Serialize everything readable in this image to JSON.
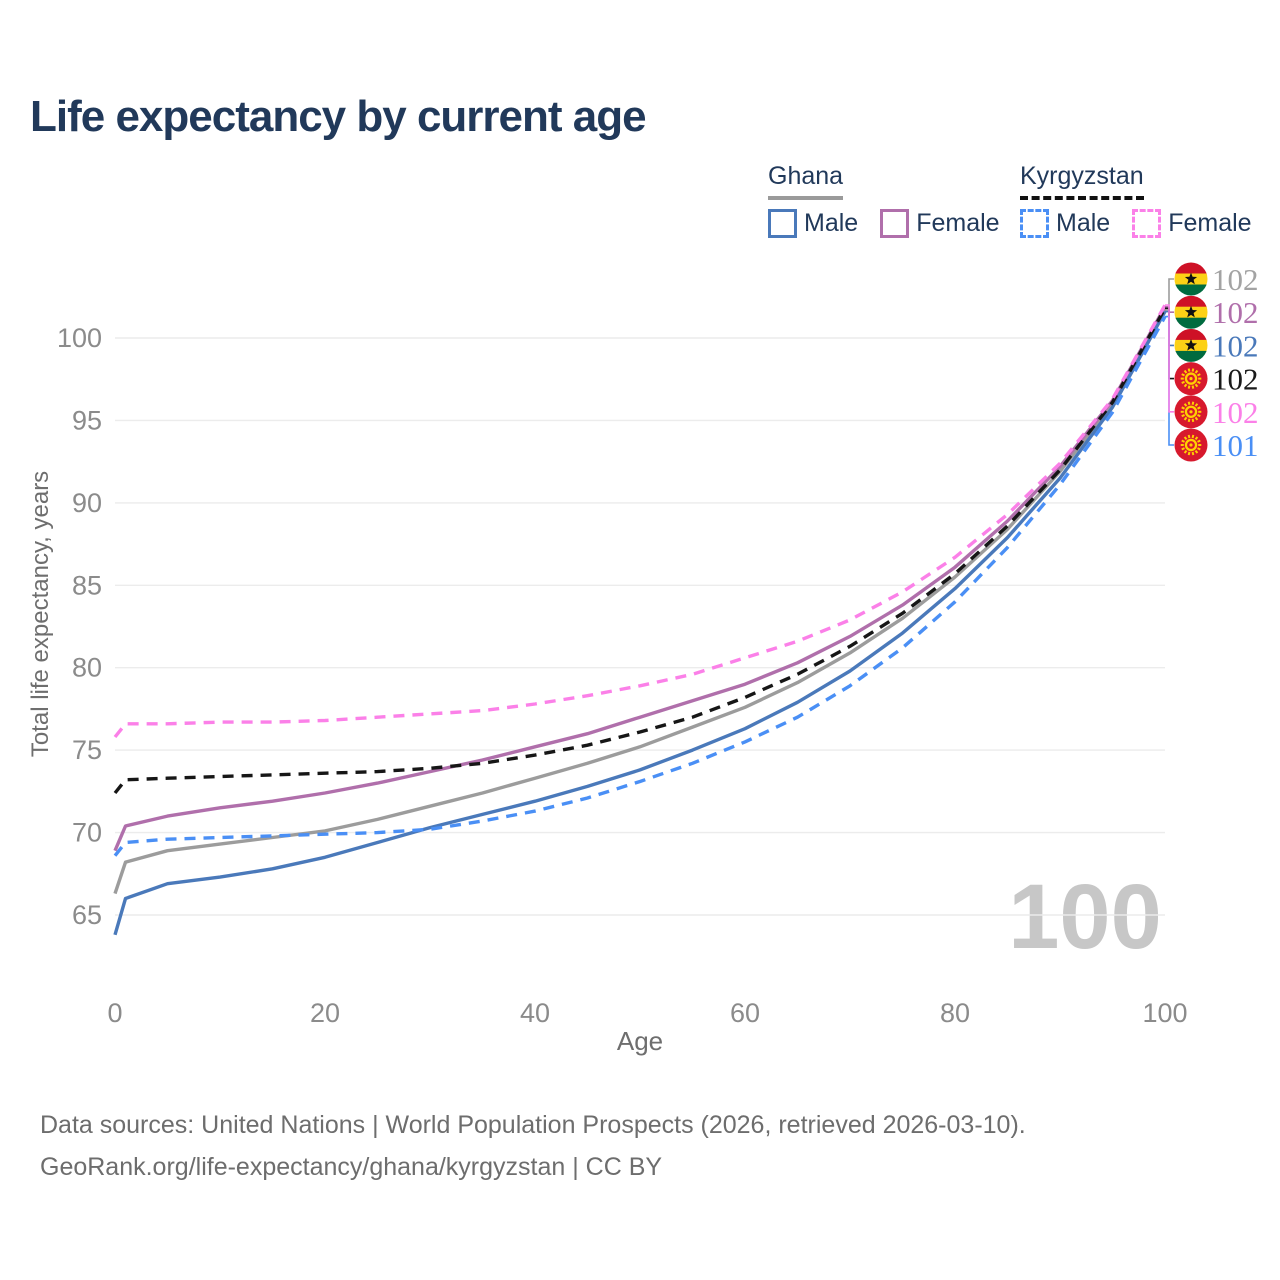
{
  "page": {
    "title": "Life expectancy by current age",
    "watermark": "100"
  },
  "legend": {
    "groups": [
      {
        "label": "Ghana",
        "underline_style": "solid",
        "underline_color": "#9a9a9a",
        "items": [
          {
            "label": "Male",
            "color": "#4a79ba",
            "dash": false
          },
          {
            "label": "Female",
            "color": "#b06fab",
            "dash": false
          }
        ]
      },
      {
        "label": "Kyrgyzstan",
        "underline_style": "dashed",
        "underline_color": "#111111",
        "items": [
          {
            "label": "Male",
            "color": "#4a8ff5",
            "dash": true
          },
          {
            "label": "Female",
            "color": "#fb80e8",
            "dash": true
          }
        ]
      }
    ]
  },
  "right_labels": [
    {
      "flag": "ghana",
      "value": "102",
      "color": "#a3a3a3"
    },
    {
      "flag": "ghana",
      "value": "102",
      "color": "#b06fab"
    },
    {
      "flag": "ghana",
      "value": "102",
      "color": "#4a79ba"
    },
    {
      "flag": "kyrgyzstan",
      "value": "102",
      "color": "#1a1a1a"
    },
    {
      "flag": "kyrgyzstan",
      "value": "102",
      "color": "#fb80e8"
    },
    {
      "flag": "kyrgyzstan",
      "value": "101",
      "color": "#4a8ff5"
    }
  ],
  "footer": {
    "line1": "Data sources: United Nations | World Population Prospects (2026, retrieved 2026-03-10).",
    "line2": "GeoRank.org/life-expectancy/ghana/kyrgyzstan | CC BY"
  },
  "chart_data": {
    "type": "line",
    "title": "Life expectancy by current age",
    "xlabel": "Age",
    "ylabel": "Total life expectancy, years",
    "xlim": [
      0,
      100
    ],
    "ylim": [
      63,
      103
    ],
    "xticks": [
      0,
      20,
      40,
      60,
      80,
      100
    ],
    "yticks": [
      65,
      70,
      75,
      80,
      85,
      90,
      95,
      100
    ],
    "grid": "horizontal",
    "legend_position": "top-right",
    "x": [
      0,
      1,
      5,
      10,
      15,
      20,
      25,
      30,
      35,
      40,
      45,
      50,
      55,
      60,
      65,
      70,
      75,
      80,
      85,
      90,
      95,
      100
    ],
    "series": [
      {
        "name": "Ghana Total",
        "country": "Ghana",
        "sex": "all",
        "color": "#9c9c9c",
        "style": "solid",
        "label_row": 0,
        "end_label": "102",
        "values": [
          66.3,
          68.2,
          68.9,
          69.3,
          69.7,
          70.1,
          70.8,
          71.6,
          72.4,
          73.3,
          74.2,
          75.2,
          76.4,
          77.6,
          79.1,
          80.9,
          83.0,
          85.5,
          88.4,
          91.9,
          96.0,
          101.7
        ]
      },
      {
        "name": "Ghana Female",
        "country": "Ghana",
        "sex": "female",
        "color": "#b06fab",
        "style": "solid",
        "label_row": 1,
        "end_label": "102",
        "values": [
          68.9,
          70.4,
          71.0,
          71.5,
          71.9,
          72.4,
          73.0,
          73.7,
          74.4,
          75.2,
          76.0,
          77.0,
          78.0,
          79.0,
          80.3,
          81.9,
          83.8,
          86.1,
          88.9,
          92.2,
          96.2,
          101.9
        ]
      },
      {
        "name": "Ghana Male",
        "country": "Ghana",
        "sex": "male",
        "color": "#4a79ba",
        "style": "solid",
        "label_row": 2,
        "end_label": "102",
        "values": [
          63.8,
          66.0,
          66.9,
          67.3,
          67.8,
          68.5,
          69.4,
          70.3,
          71.1,
          71.9,
          72.8,
          73.8,
          75.0,
          76.3,
          77.9,
          79.8,
          82.1,
          84.8,
          87.9,
          91.5,
          95.8,
          101.6
        ]
      },
      {
        "name": "Kyrgyzstan Total",
        "country": "Kyrgyzstan",
        "sex": "all",
        "color": "#161616",
        "style": "dashed",
        "label_row": 3,
        "end_label": "102",
        "values": [
          72.4,
          73.2,
          73.3,
          73.4,
          73.5,
          73.6,
          73.7,
          73.9,
          74.2,
          74.7,
          75.3,
          76.1,
          77.0,
          78.2,
          79.6,
          81.3,
          83.3,
          85.7,
          88.6,
          92.0,
          96.1,
          101.8
        ]
      },
      {
        "name": "Kyrgyzstan Male",
        "country": "Kyrgyzstan",
        "sex": "male",
        "color": "#4a8ff5",
        "style": "dashed",
        "label_row": 5,
        "end_label": "101",
        "values": [
          68.6,
          69.4,
          69.6,
          69.7,
          69.8,
          69.9,
          70.0,
          70.2,
          70.7,
          71.3,
          72.1,
          73.1,
          74.2,
          75.5,
          77.0,
          78.9,
          81.2,
          84.0,
          87.3,
          91.1,
          95.5,
          101.3
        ]
      },
      {
        "name": "Kyrgyzstan Female",
        "country": "Kyrgyzstan",
        "sex": "female",
        "color": "#fb80e8",
        "style": "dashed",
        "label_row": 4,
        "end_label": "102",
        "values": [
          75.8,
          76.6,
          76.6,
          76.7,
          76.7,
          76.8,
          77.0,
          77.2,
          77.4,
          77.8,
          78.3,
          78.9,
          79.6,
          80.6,
          81.6,
          82.9,
          84.6,
          86.7,
          89.3,
          92.4,
          96.3,
          102.0
        ]
      }
    ]
  },
  "style": {
    "tick_color": "#8b8b8b",
    "axis_title_color": "#6e6e6e",
    "grid_color": "#ececec",
    "watermark_color": "#c7c7c7",
    "ghana_flag": {
      "red": "#ce1126",
      "gold": "#fcd116",
      "green": "#006b3f",
      "star": "#111111"
    },
    "kyrgyzstan_flag": {
      "red": "#d7192d",
      "sun": "#ffd100"
    }
  }
}
